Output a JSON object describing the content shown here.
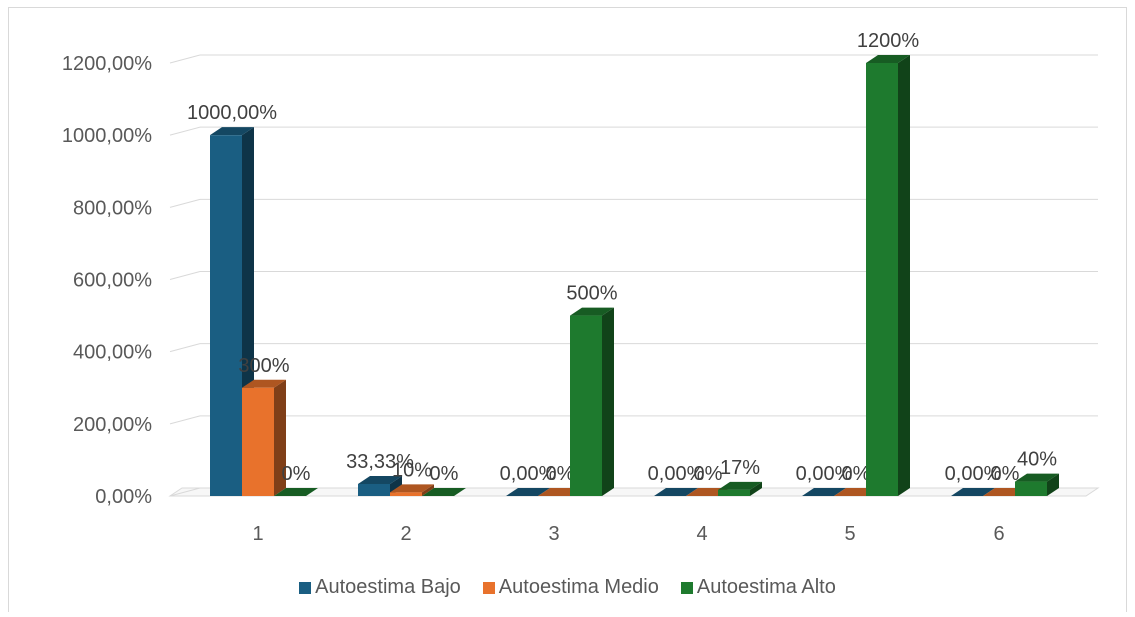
{
  "chart_data": {
    "type": "bar",
    "categories": [
      "1",
      "2",
      "3",
      "4",
      "5",
      "6"
    ],
    "ylim": [
      0,
      1200
    ],
    "y_ticks": [
      {
        "value": 0,
        "label": "0,00%"
      },
      {
        "value": 200,
        "label": "200,00%"
      },
      {
        "value": 400,
        "label": "400,00%"
      },
      {
        "value": 600,
        "label": "600,00%"
      },
      {
        "value": 800,
        "label": "800,00%"
      },
      {
        "value": 1000,
        "label": "1000,00%"
      },
      {
        "value": 1200,
        "label": "1200,00%"
      }
    ],
    "grid": true,
    "legend_position": "bottom",
    "series": [
      {
        "name": "Autoestima Bajo",
        "color": "#1a5e82",
        "values": [
          1000,
          33.33,
          0,
          0,
          0,
          0
        ],
        "labels": [
          "1000,00%",
          "33,33%",
          "0,00%",
          "0,00%",
          "0,00%",
          "0,00%"
        ]
      },
      {
        "name": "Autoestima Medio",
        "color": "#e8722c",
        "values": [
          300,
          10,
          0,
          0,
          0,
          0
        ],
        "labels": [
          "300%",
          "10%",
          "0%",
          "0%",
          "0%",
          "0%"
        ]
      },
      {
        "name": "Autoestima Alto",
        "color": "#1e7a2e",
        "values": [
          0,
          0,
          500,
          17,
          1200,
          40
        ],
        "labels": [
          "0%",
          "0%",
          "500%",
          "17%",
          "1200%",
          "40%"
        ]
      }
    ]
  }
}
